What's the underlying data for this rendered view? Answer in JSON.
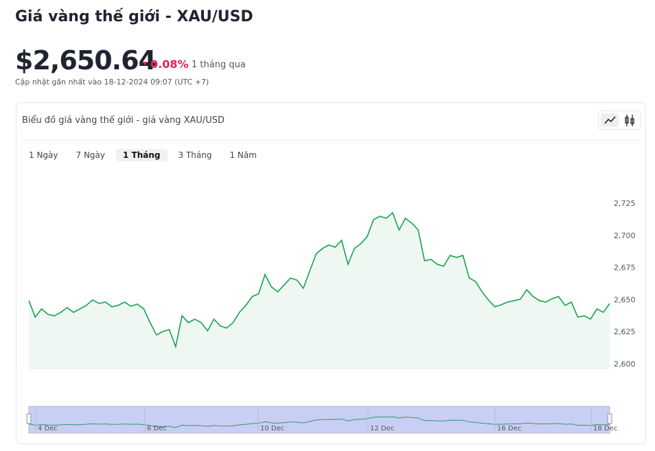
{
  "header": {
    "title": "Giá vàng thế giới - XAU/USD",
    "price": "$2,650.64",
    "change": "0.08%",
    "period": "1 tháng qua",
    "updated": "Cập nhật gần nhất vào 18-12-2024 09:07 (UTC +7)"
  },
  "card": {
    "title": "Biểu đồ giá vàng thế giới - giá vàng XAU/USD",
    "ranges": [
      "1 Ngày",
      "7 Ngày",
      "1 Tháng",
      "3 Tháng",
      "1 Năm"
    ],
    "active_range": 2
  },
  "chart_data": {
    "type": "line",
    "color": "#16a34a",
    "values": [
      2649.7,
      2636.9,
      2643.3,
      2639,
      2637.9,
      2640.6,
      2644.3,
      2640.6,
      2643.3,
      2646,
      2650.2,
      2647.5,
      2648.6,
      2644.9,
      2646,
      2648.6,
      2645.4,
      2647,
      2643.3,
      2632.6,
      2623,
      2625.7,
      2627.2,
      2613.9,
      2637.9,
      2632.6,
      2635.3,
      2632.6,
      2626.2,
      2635.3,
      2630,
      2628.4,
      2632.6,
      2640.6,
      2646,
      2652.9,
      2655.1,
      2670,
      2660.4,
      2656.6,
      2662,
      2667.3,
      2665.7,
      2659.3,
      2672.7,
      2686,
      2690.3,
      2693,
      2691.3,
      2696.7,
      2678,
      2690.3,
      2694,
      2699.4,
      2712.7,
      2715.4,
      2713.8,
      2718.1,
      2704.7,
      2713.8,
      2710,
      2704.7,
      2680.7,
      2681.8,
      2678,
      2676.5,
      2684.9,
      2683.3,
      2684.9,
      2667.3,
      2664.6,
      2656.6,
      2650.2,
      2644.9,
      2646.5,
      2648.6,
      2649.7,
      2650.8,
      2658.2,
      2652.9,
      2649.7,
      2648.6,
      2651.3,
      2652.9,
      2646,
      2648.6,
      2636.9,
      2637.9,
      2635.3,
      2643.3,
      2640.6,
      2647.5
    ],
    "ylim": [
      2600,
      2725
    ],
    "yticks": [
      {
        "value": 2600,
        "label": "2,600"
      },
      {
        "value": 2625,
        "label": "2,625"
      },
      {
        "value": 2650,
        "label": "2,650"
      },
      {
        "value": 2675,
        "label": "2,675"
      },
      {
        "value": 2700,
        "label": "2,700"
      },
      {
        "value": 2725,
        "label": "2,725"
      }
    ],
    "navigator_labels": [
      "4 Dec",
      "6 Dec",
      "10 Dec",
      "12 Dec",
      "16 Dec",
      "18 Dec"
    ]
  }
}
